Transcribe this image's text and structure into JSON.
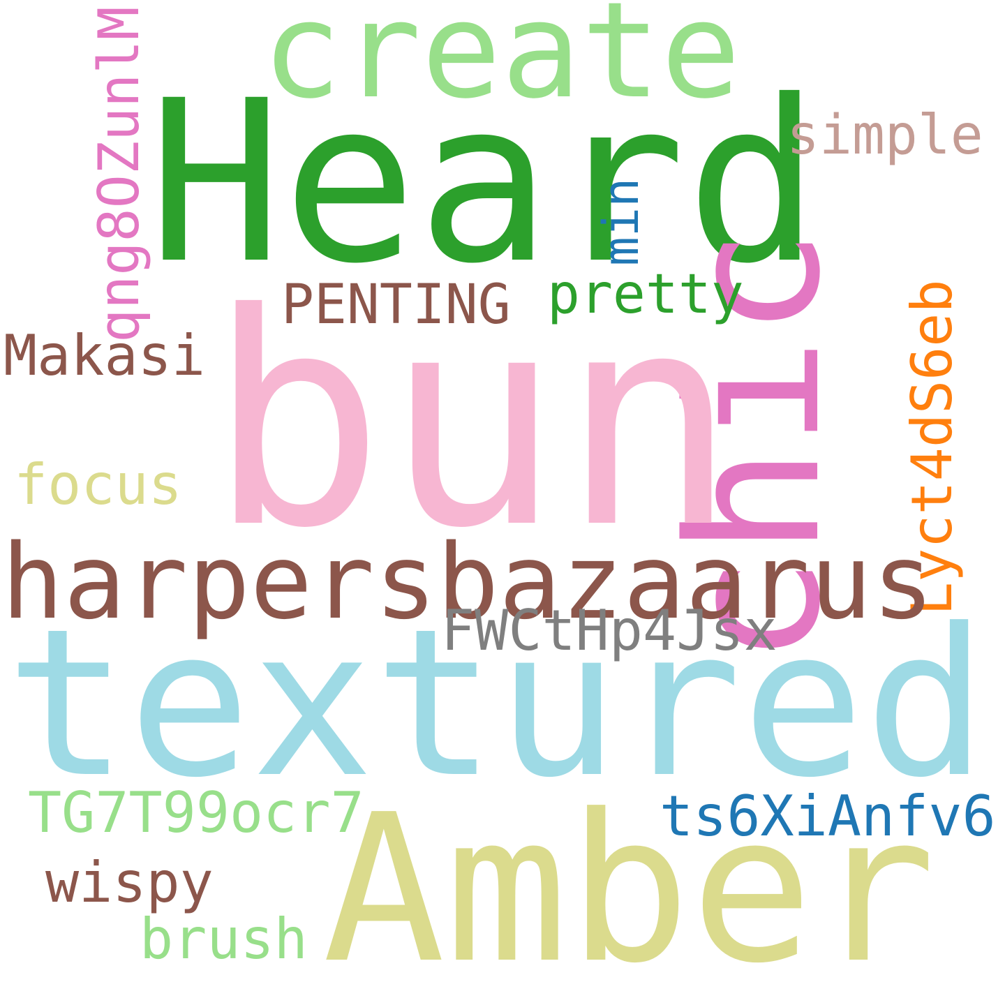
{
  "words": {
    "create": {
      "text": "create",
      "color": "#98df8a"
    },
    "heard": {
      "text": "Heard",
      "color": "#2ca02c"
    },
    "simple": {
      "text": "simple",
      "color": "#c49c94"
    },
    "chic": {
      "text": "chic",
      "color": "#e377c2"
    },
    "min": {
      "text": "min",
      "color": "#1f77b4"
    },
    "qng": {
      "text": "qng8OZunlM",
      "color": "#e377c2"
    },
    "penting": {
      "text": "PENTING",
      "color": "#8c564b"
    },
    "pretty": {
      "text": "pretty",
      "color": "#2ca02c"
    },
    "makasi": {
      "text": "Makasi",
      "color": "#8c564b"
    },
    "bun": {
      "text": "bun",
      "color": "#f7b6d2"
    },
    "lyct": {
      "text": "Lyct4dS6eb",
      "color": "#ff7f0e"
    },
    "focus": {
      "text": "focus",
      "color": "#dbdb8d"
    },
    "harpers": {
      "text": "harpersbazaarus",
      "color": "#8c564b"
    },
    "fwct": {
      "text": "FWCtHp4Jsx",
      "color": "#7f7f7f"
    },
    "textured": {
      "text": "textured",
      "color": "#9edae5"
    },
    "tg7": {
      "text": "TG7T99ocr7",
      "color": "#98df8a"
    },
    "ts6": {
      "text": "ts6XiAnfv6",
      "color": "#1f77b4"
    },
    "amber": {
      "text": "Amber",
      "color": "#dbdb8d"
    },
    "wispy": {
      "text": "wispy",
      "color": "#8c564b"
    },
    "brush": {
      "text": "brush",
      "color": "#98df8a"
    }
  }
}
